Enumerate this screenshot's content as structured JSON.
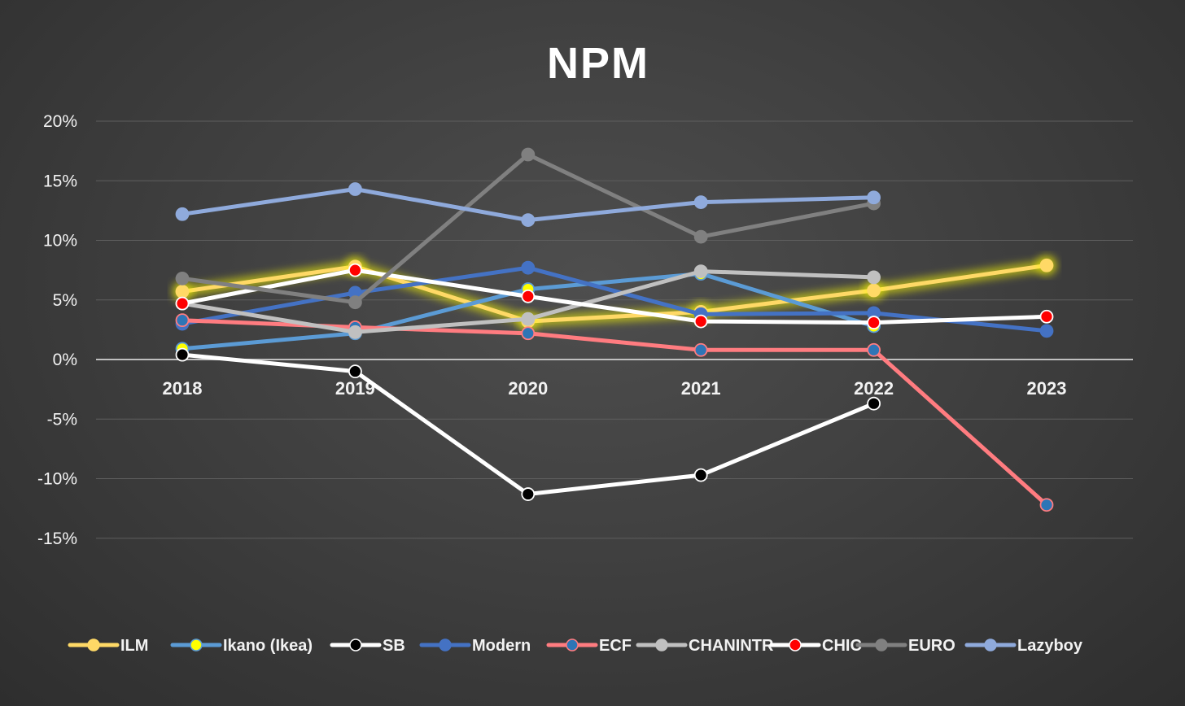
{
  "chart_data": {
    "type": "line",
    "title": "NPM",
    "xlabel": "",
    "ylabel": "",
    "categories": [
      "2018",
      "2019",
      "2020",
      "2021",
      "2022",
      "2023"
    ],
    "ylim": [
      -0.15,
      0.2
    ],
    "yticks": [
      0.2,
      0.15,
      0.1,
      0.05,
      0.0,
      -0.05,
      -0.1,
      -0.15
    ],
    "ytick_labels": [
      "20%",
      "15%",
      "10%",
      "5%",
      "0%",
      "-5%",
      "-10%",
      "-15%"
    ],
    "grid": true,
    "legend_position": "bottom",
    "series": [
      {
        "name": "ILM",
        "line": "#ffd966",
        "marker_fill": "#ffd966",
        "marker_stroke": "#ffd966",
        "glow": true,
        "values": [
          0.057,
          0.078,
          0.032,
          0.04,
          0.058,
          0.079
        ]
      },
      {
        "name": "Ikano (Ikea)",
        "line": "#5b9bd5",
        "marker_fill": "#ffff00",
        "marker_stroke": "#5b9bd5",
        "glow": false,
        "values": [
          0.009,
          0.022,
          0.059,
          0.072,
          0.028,
          null
        ]
      },
      {
        "name": "SB",
        "line": "#ffffff",
        "marker_fill": "#000000",
        "marker_stroke": "#ffffff",
        "glow": false,
        "values": [
          0.004,
          -0.01,
          -0.113,
          -0.097,
          -0.037,
          null
        ]
      },
      {
        "name": "Modern",
        "line": "#4472c4",
        "marker_fill": "#4472c4",
        "marker_stroke": "#4472c4",
        "glow": false,
        "values": [
          0.03,
          0.056,
          0.077,
          0.038,
          0.039,
          0.024
        ]
      },
      {
        "name": "ECF",
        "line": "#ff7c80",
        "marker_fill": "#2e75b6",
        "marker_stroke": "#ff7c80",
        "glow": false,
        "values": [
          0.033,
          0.027,
          0.022,
          0.008,
          0.008,
          -0.122
        ]
      },
      {
        "name": "CHANINTR",
        "line": "#c0c0c0",
        "marker_fill": "#c0c0c0",
        "marker_stroke": "#c0c0c0",
        "glow": false,
        "values": [
          0.047,
          0.023,
          0.034,
          0.074,
          0.069,
          null
        ]
      },
      {
        "name": "CHIC",
        "line": "#ffffff",
        "marker_fill": "#ff0000",
        "marker_stroke": "#ffffff",
        "glow": false,
        "values": [
          0.047,
          0.075,
          0.053,
          0.032,
          0.031,
          0.036
        ]
      },
      {
        "name": "EURO",
        "line": "#808080",
        "marker_fill": "#808080",
        "marker_stroke": "#808080",
        "glow": false,
        "values": [
          0.068,
          0.048,
          0.172,
          0.103,
          0.131,
          null
        ]
      },
      {
        "name": "Lazyboy",
        "line": "#8faadc",
        "marker_fill": "#8faadc",
        "marker_stroke": "#8faadc",
        "glow": false,
        "values": [
          0.122,
          0.143,
          0.117,
          0.132,
          0.136,
          null
        ]
      }
    ]
  }
}
